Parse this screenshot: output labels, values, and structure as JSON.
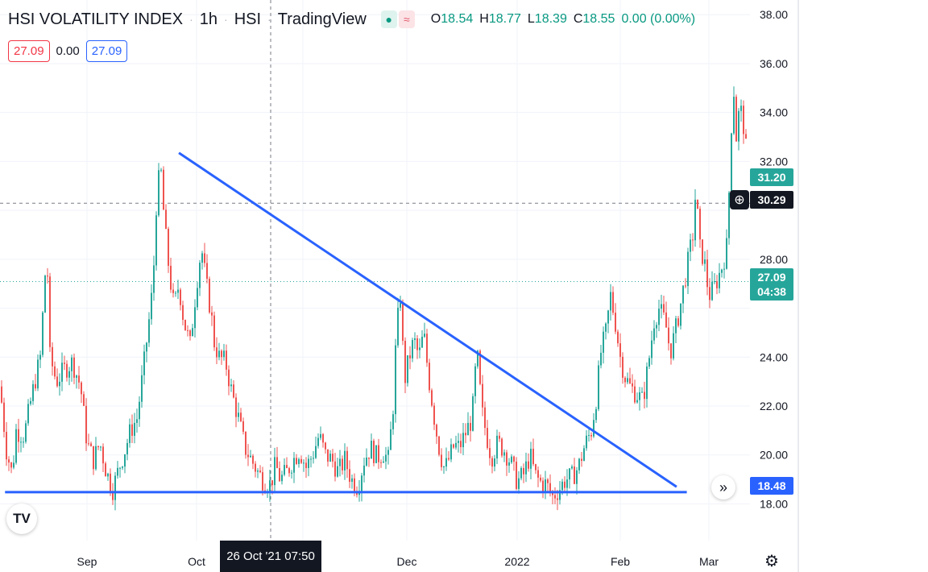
{
  "header": {
    "symbol_name": "HSI VOLATILITY INDEX",
    "interval": "1h",
    "exchange": "HSI",
    "source": "TradingView",
    "ohlc": {
      "o_label": "O",
      "o": "18.54",
      "h_label": "H",
      "h": "18.77",
      "l_label": "L",
      "l": "18.39",
      "c_label": "C",
      "c": "18.55",
      "change": "0.00 (0.00%)"
    }
  },
  "trade_boxes": {
    "sell": "27.09",
    "spread": "0.00",
    "buy": "27.09"
  },
  "price_tags": {
    "high_tag": "31.20",
    "crosshair": "30.29",
    "last": "27.09",
    "countdown": "04:38",
    "line": "18.48"
  },
  "crosshair_time": "26 Oct '21  07:50",
  "icons": {
    "plus": "plus-icon",
    "double_chevron": "double-chevron-right-icon",
    "gear": "gear-icon",
    "logo": "tradingview-logo-icon"
  },
  "colors": {
    "up": "#26a69a",
    "down": "#ef5350",
    "trendline": "#2962ff",
    "tag_green": "#26a69a",
    "tag_black": "#131722"
  },
  "chart_data": {
    "type": "candlestick",
    "y_ticks": [
      "38.00",
      "36.00",
      "34.00",
      "32.00",
      "28.00",
      "24.00",
      "22.00",
      "20.00",
      "18.00"
    ],
    "x_ticks": [
      "Sep",
      "Oct",
      "Dec",
      "2022",
      "Feb",
      "Mar"
    ],
    "ylim": [
      16.5,
      38.6
    ],
    "trend_lines": [
      {
        "name": "descending",
        "from": {
          "x": "Sep 22 '21",
          "y": 32.35
        },
        "to": {
          "x": "Feb 15 '22",
          "y": 18.7
        }
      },
      {
        "name": "support",
        "from": {
          "x": "Aug 2 '21",
          "y": 18.48
        },
        "to": {
          "x": "Feb 18 '22",
          "y": 18.48
        }
      }
    ],
    "horizontal_lines": [
      {
        "y": 30.29,
        "style": "dashed"
      },
      {
        "y": 27.09,
        "style": "dotted"
      }
    ],
    "path": [
      [
        0,
        22.8
      ],
      [
        8,
        20.2
      ],
      [
        15,
        19.2
      ],
      [
        20,
        21.0
      ],
      [
        30,
        20.8
      ],
      [
        40,
        22.5
      ],
      [
        50,
        24.0
      ],
      [
        58,
        28.5
      ],
      [
        62,
        24.0
      ],
      [
        70,
        23.0
      ],
      [
        80,
        23.5
      ],
      [
        90,
        23.8
      ],
      [
        100,
        22.8
      ],
      [
        108,
        20.5
      ],
      [
        116,
        19.8
      ],
      [
        124,
        20.5
      ],
      [
        132,
        19.3
      ],
      [
        140,
        18.6
      ],
      [
        148,
        19.5
      ],
      [
        155,
        20.2
      ],
      [
        162,
        21.0
      ],
      [
        170,
        21.5
      ],
      [
        178,
        23.5
      ],
      [
        185,
        25.5
      ],
      [
        190,
        27.0
      ],
      [
        195,
        31.0
      ],
      [
        200,
        31.5
      ],
      [
        204,
        29.5
      ],
      [
        210,
        27.5
      ],
      [
        216,
        26.0
      ],
      [
        222,
        27.0
      ],
      [
        228,
        25.5
      ],
      [
        236,
        24.5
      ],
      [
        244,
        27.0
      ],
      [
        250,
        28.5
      ],
      [
        256,
        27.0
      ],
      [
        262,
        25.8
      ],
      [
        266,
        24.6
      ],
      [
        272,
        24.0
      ],
      [
        280,
        23.8
      ],
      [
        288,
        22.5
      ],
      [
        296,
        21.5
      ],
      [
        304,
        20.3
      ],
      [
        312,
        19.8
      ],
      [
        320,
        19.3
      ],
      [
        328,
        18.9
      ],
      [
        336,
        18.8
      ],
      [
        342,
        19.6
      ],
      [
        348,
        19.0
      ],
      [
        356,
        19.3
      ],
      [
        364,
        19.8
      ],
      [
        372,
        20.2
      ],
      [
        380,
        19.5
      ],
      [
        388,
        20.0
      ],
      [
        396,
        20.8
      ],
      [
        404,
        20.0
      ],
      [
        412,
        19.8
      ],
      [
        420,
        19.3
      ],
      [
        428,
        19.8
      ],
      [
        436,
        19.0
      ],
      [
        444,
        18.7
      ],
      [
        452,
        19.8
      ],
      [
        460,
        20.3
      ],
      [
        468,
        19.9
      ],
      [
        476,
        20.1
      ],
      [
        482,
        19.8
      ],
      [
        488,
        22.0
      ],
      [
        492,
        25.0
      ],
      [
        497,
        26.5
      ],
      [
        502,
        23.0
      ],
      [
        508,
        24.0
      ],
      [
        514,
        24.7
      ],
      [
        520,
        24.0
      ],
      [
        526,
        25.0
      ],
      [
        532,
        23.2
      ],
      [
        540,
        21.3
      ],
      [
        546,
        20.1
      ],
      [
        552,
        19.4
      ],
      [
        558,
        19.9
      ],
      [
        564,
        20.4
      ],
      [
        570,
        20.3
      ],
      [
        578,
        20.9
      ],
      [
        586,
        21.5
      ],
      [
        592,
        24.3
      ],
      [
        598,
        21.8
      ],
      [
        604,
        20.8
      ],
      [
        610,
        19.9
      ],
      [
        618,
        20.5
      ],
      [
        626,
        20.2
      ],
      [
        634,
        19.7
      ],
      [
        642,
        18.9
      ],
      [
        650,
        19.2
      ],
      [
        658,
        20.0
      ],
      [
        664,
        19.2
      ],
      [
        670,
        18.9
      ],
      [
        678,
        18.8
      ],
      [
        686,
        18.3
      ],
      [
        694,
        18.6
      ],
      [
        702,
        19.0
      ],
      [
        710,
        19.1
      ],
      [
        718,
        19.5
      ],
      [
        726,
        20.4
      ],
      [
        734,
        21.0
      ],
      [
        740,
        22.3
      ],
      [
        746,
        24.2
      ],
      [
        752,
        25.0
      ],
      [
        758,
        26.5
      ],
      [
        764,
        25.4
      ],
      [
        770,
        24.0
      ],
      [
        776,
        23.2
      ],
      [
        782,
        22.8
      ],
      [
        790,
        22.5
      ],
      [
        798,
        22.2
      ],
      [
        806,
        24.0
      ],
      [
        812,
        25.5
      ],
      [
        818,
        26.0
      ],
      [
        826,
        25.4
      ],
      [
        832,
        24.2
      ],
      [
        838,
        25.0
      ],
      [
        844,
        26.0
      ],
      [
        852,
        27.5
      ],
      [
        860,
        29.0
      ],
      [
        864,
        31.0
      ],
      [
        868,
        28.5
      ],
      [
        874,
        28.0
      ],
      [
        880,
        26.5
      ],
      [
        886,
        26.8
      ],
      [
        892,
        27.3
      ],
      [
        898,
        27.9
      ],
      [
        902,
        28.5
      ],
      [
        906,
        31.5
      ],
      [
        910,
        35.5
      ],
      [
        914,
        33.0
      ],
      [
        918,
        34.2
      ],
      [
        922,
        33.8
      ],
      [
        926,
        32.5
      ]
    ]
  }
}
